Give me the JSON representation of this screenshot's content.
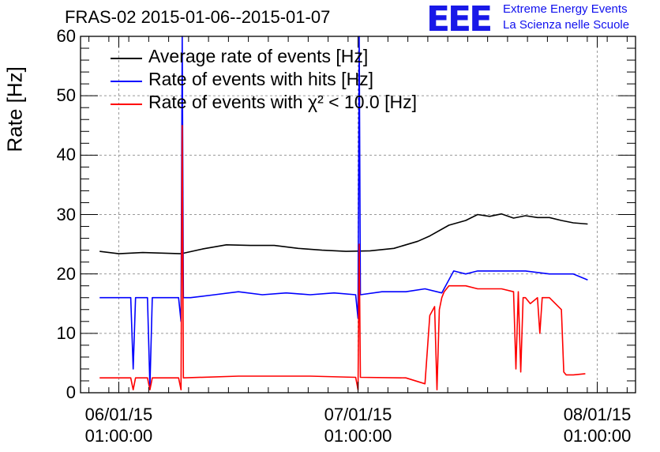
{
  "header": {
    "title": "FRAS-02 2015-01-06--2015-01-07",
    "logo_text": "EEE",
    "logo_line1": "Extreme Energy Events",
    "logo_line2": "La Scienza nelle Scuole"
  },
  "chart_data": {
    "type": "line",
    "ylabel": "Rate [Hz]",
    "ylim": [
      0,
      60
    ],
    "yticks": [
      "0",
      "10",
      "20",
      "30",
      "40",
      "50",
      "60"
    ],
    "xlim": [
      -0.16,
      2.16
    ],
    "xtick_positions": [
      0,
      1,
      2
    ],
    "xtick_labels": [
      {
        "date": "06/01/15",
        "time": "01:00:00"
      },
      {
        "date": "07/01/15",
        "time": "01:00:00"
      },
      {
        "date": "08/01/15",
        "time": "01:00:00"
      }
    ],
    "grid": true,
    "legend_position": "top-left",
    "series": [
      {
        "name": "Average rate of events [Hz]",
        "color": "#000000",
        "x": [
          -0.08,
          0.0,
          0.1,
          0.26,
          0.35,
          0.45,
          0.55,
          0.65,
          0.75,
          0.85,
          0.95,
          1.05,
          1.15,
          1.25,
          1.3,
          1.38,
          1.45,
          1.5,
          1.55,
          1.6,
          1.65,
          1.7,
          1.75,
          1.8,
          1.85,
          1.9,
          1.96
        ],
        "y": [
          23.8,
          23.4,
          23.6,
          23.4,
          24.2,
          24.9,
          24.8,
          24.8,
          24.3,
          24.0,
          23.8,
          23.9,
          24.3,
          25.5,
          26.4,
          28.2,
          29.0,
          30.0,
          29.7,
          30.1,
          29.4,
          29.8,
          29.5,
          29.5,
          29.0,
          28.6,
          28.4
        ]
      },
      {
        "name": "Rate of events with hits [Hz]",
        "color": "#0000ff",
        "x": [
          -0.08,
          0.05,
          0.06,
          0.07,
          0.08,
          0.12,
          0.13,
          0.14,
          0.15,
          0.25,
          0.26,
          0.265,
          0.27,
          0.3,
          0.4,
          0.5,
          0.6,
          0.7,
          0.8,
          0.9,
          0.99,
          1.0,
          1.005,
          1.01,
          1.1,
          1.2,
          1.28,
          1.35,
          1.4,
          1.45,
          1.5,
          1.6,
          1.7,
          1.8,
          1.9,
          1.96
        ],
        "y": [
          16.0,
          16.0,
          4.0,
          16.0,
          16.0,
          16.0,
          1.0,
          16.0,
          16.0,
          16.0,
          12.0,
          60.0,
          16.0,
          16.0,
          16.5,
          17.0,
          16.5,
          16.8,
          16.5,
          16.8,
          16.5,
          12.5,
          60.0,
          16.5,
          17.0,
          17.0,
          17.5,
          16.8,
          20.5,
          20.0,
          20.5,
          20.5,
          20.5,
          20.0,
          20.0,
          19.0
        ]
      },
      {
        "name": "Rate of events with χ² < 10.0 [Hz]",
        "color": "#ff0000",
        "x": [
          -0.08,
          0.05,
          0.06,
          0.07,
          0.12,
          0.13,
          0.14,
          0.25,
          0.26,
          0.265,
          0.27,
          0.5,
          0.8,
          0.99,
          1.0,
          1.005,
          1.01,
          1.2,
          1.28,
          1.3,
          1.32,
          1.33,
          1.34,
          1.35,
          1.36,
          1.38,
          1.45,
          1.5,
          1.6,
          1.65,
          1.66,
          1.67,
          1.68,
          1.69,
          1.7,
          1.72,
          1.75,
          1.76,
          1.77,
          1.8,
          1.85,
          1.86,
          1.87,
          1.9,
          1.95
        ],
        "y": [
          2.5,
          2.5,
          0.5,
          2.5,
          2.5,
          0.5,
          2.5,
          2.5,
          0.5,
          45.0,
          2.5,
          2.8,
          2.8,
          2.6,
          0.5,
          25.0,
          2.6,
          2.5,
          1.5,
          13.0,
          14.5,
          0.5,
          14.0,
          16.0,
          17.0,
          18.0,
          18.0,
          17.5,
          17.5,
          17.0,
          4.0,
          17.0,
          3.5,
          16.0,
          16.0,
          15.0,
          16.0,
          10.0,
          16.0,
          16.0,
          14.0,
          3.5,
          3.0,
          3.0,
          3.2
        ]
      }
    ]
  }
}
